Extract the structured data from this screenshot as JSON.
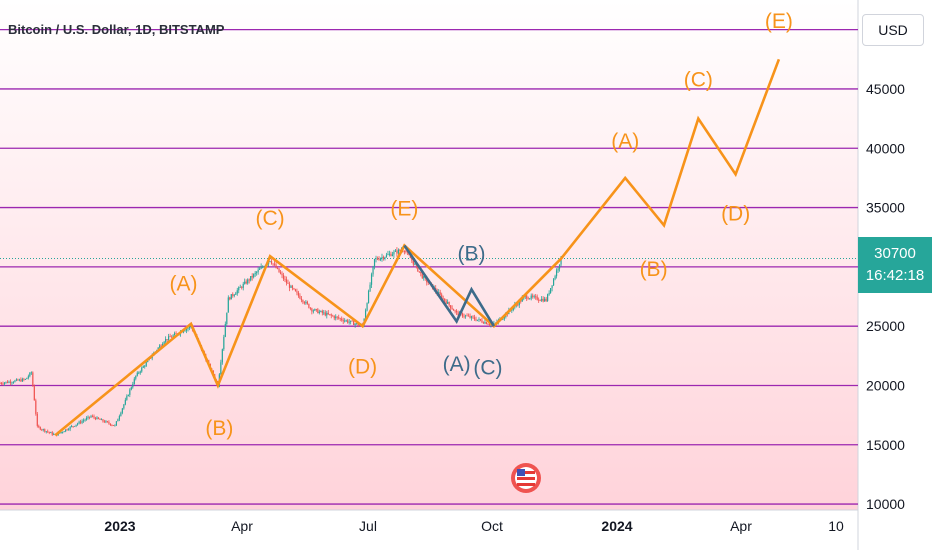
{
  "header": {
    "title": "Bitcoin / U.S. Dollar, 1D, BITSTAMP",
    "currency": "USD"
  },
  "price_box": {
    "price": "30700",
    "countdown": "16:42:18"
  },
  "colors": {
    "projection": "#f7931a",
    "correction": "#3d6b8a",
    "level_line": "#9c27b0",
    "up_candle": "#26a69a",
    "down_candle": "#ef5350",
    "background_top": "#ffffff",
    "background_bottom": "#ffd3da"
  },
  "chart_data": {
    "type": "line",
    "x_axis": {
      "ticks": [
        "2023",
        "Apr",
        "Jul",
        "Oct",
        "2024",
        "Apr",
        "10"
      ],
      "range": [
        "2022-10-15",
        "2024-05-12"
      ]
    },
    "y_axis": {
      "ticks": [
        10000,
        15000,
        20000,
        25000,
        30000,
        35000,
        40000,
        45000
      ],
      "range": [
        9500,
        52500
      ],
      "current_price": 30700
    },
    "horizontal_levels": [
      10000,
      15000,
      20000,
      25000,
      30000,
      35000,
      40000,
      45000,
      50000
    ],
    "series": [
      {
        "role": "projection",
        "points": [
          [
            "2022-11-21",
            15800
          ],
          [
            "2023-02-20",
            25200
          ],
          [
            "2023-03-10",
            20000
          ],
          [
            "2023-04-14",
            30900
          ],
          [
            "2023-06-15",
            25000
          ],
          [
            "2023-07-13",
            31800
          ],
          [
            "2023-09-11",
            25000
          ],
          [
            "2023-10-26",
            30700
          ],
          [
            "2023-12-08",
            37500
          ],
          [
            "2024-01-03",
            33500
          ],
          [
            "2024-01-26",
            42500
          ],
          [
            "2024-02-20",
            37800
          ],
          [
            "2024-03-20",
            47500
          ]
        ]
      },
      {
        "role": "correction",
        "points": [
          [
            "2023-07-13",
            31800
          ],
          [
            "2023-08-17",
            25400
          ],
          [
            "2023-08-27",
            28100
          ],
          [
            "2023-09-11",
            25000
          ]
        ]
      },
      {
        "role": "price",
        "points": [
          [
            "2022-10-15",
            20200
          ],
          [
            "2022-11-01",
            20500
          ],
          [
            "2022-11-05",
            21100
          ],
          [
            "2022-11-09",
            16500
          ],
          [
            "2022-11-21",
            15800
          ],
          [
            "2022-12-15",
            17400
          ],
          [
            "2022-12-31",
            16600
          ],
          [
            "2023-01-14",
            20800
          ],
          [
            "2023-02-02",
            23800
          ],
          [
            "2023-02-20",
            25000
          ],
          [
            "2023-03-10",
            20000
          ],
          [
            "2023-03-17",
            27300
          ],
          [
            "2023-04-14",
            30600
          ],
          [
            "2023-04-26",
            28500
          ],
          [
            "2023-05-12",
            26400
          ],
          [
            "2023-06-15",
            25000
          ],
          [
            "2023-06-23",
            30600
          ],
          [
            "2023-07-13",
            31500
          ],
          [
            "2023-07-25",
            29200
          ],
          [
            "2023-08-17",
            26100
          ],
          [
            "2023-09-11",
            25100
          ],
          [
            "2023-10-02",
            27500
          ],
          [
            "2023-10-16",
            27200
          ],
          [
            "2023-10-26",
            30700
          ]
        ]
      }
    ],
    "annotations": [
      {
        "text": "(A)",
        "date": "2023-02-15",
        "price": 28700,
        "role": "projection"
      },
      {
        "text": "(B)",
        "date": "2023-03-11",
        "price": 16500,
        "role": "projection"
      },
      {
        "text": "(C)",
        "date": "2023-04-14",
        "price": 34200,
        "role": "projection"
      },
      {
        "text": "(D)",
        "date": "2023-06-15",
        "price": 21700,
        "role": "projection"
      },
      {
        "text": "(E)",
        "date": "2023-07-13",
        "price": 35000,
        "role": "projection"
      },
      {
        "text": "(B)",
        "date": "2023-08-27",
        "price": 31200,
        "role": "correction"
      },
      {
        "text": "(A)",
        "date": "2023-08-17",
        "price": 21900,
        "role": "correction"
      },
      {
        "text": "(C)",
        "date": "2023-09-07",
        "price": 21600,
        "role": "correction"
      },
      {
        "text": "(A)",
        "date": "2023-12-08",
        "price": 40700,
        "role": "projection"
      },
      {
        "text": "(B)",
        "date": "2023-12-27",
        "price": 29900,
        "role": "projection"
      },
      {
        "text": "(C)",
        "date": "2024-01-26",
        "price": 45900,
        "role": "projection"
      },
      {
        "text": "(D)",
        "date": "2024-02-20",
        "price": 34600,
        "role": "projection"
      },
      {
        "text": "(E)",
        "date": "2024-03-20",
        "price": 50800,
        "role": "projection"
      }
    ]
  }
}
